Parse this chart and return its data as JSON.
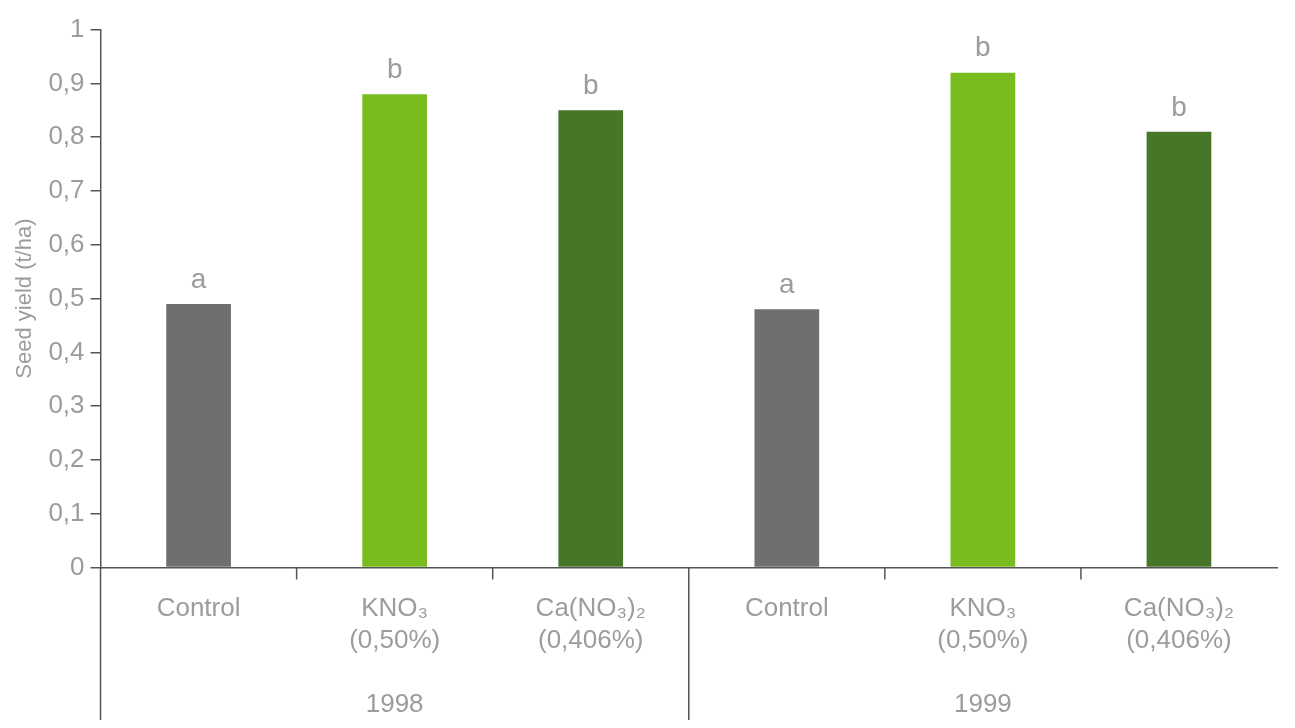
{
  "chart_data": {
    "type": "bar",
    "ylabel": "Seed yield (t/ha)",
    "categories": [
      "Control",
      "KNO₃\n(0,50%)",
      "Ca(NO₃)₂\n(0,406%)",
      "Control",
      "KNO₃\n(0,50%)",
      "Ca(NO₃)₂\n(0,406%)"
    ],
    "values": [
      0.49,
      0.88,
      0.85,
      0.48,
      0.92,
      0.81
    ],
    "colors": [
      "#6f706e",
      "#78bc1f",
      "#467628",
      "#6f706e",
      "#78bc1f",
      "#467628"
    ],
    "value_labels": [
      "a",
      "b",
      "b",
      "a",
      "b",
      "b"
    ],
    "ylim": [
      0,
      1
    ],
    "yticks": [
      0,
      {
        "value": 0.1,
        "label": "0,1"
      },
      {
        "value": 0.2,
        "label": "0,2"
      },
      {
        "value": 0.3,
        "label": "0,3"
      },
      {
        "value": 0.4,
        "label": "0,4"
      },
      {
        "value": 0.5,
        "label": "0,5"
      },
      {
        "value": 0.6,
        "label": "0,6"
      },
      {
        "value": 0.7,
        "label": "0,7"
      },
      {
        "value": 0.8,
        "label": "0,8"
      },
      {
        "value": 0.9,
        "label": "0,9"
      },
      1
    ],
    "annotations": [
      "1998",
      "1999"
    ],
    "grid": false,
    "legend": false
  }
}
